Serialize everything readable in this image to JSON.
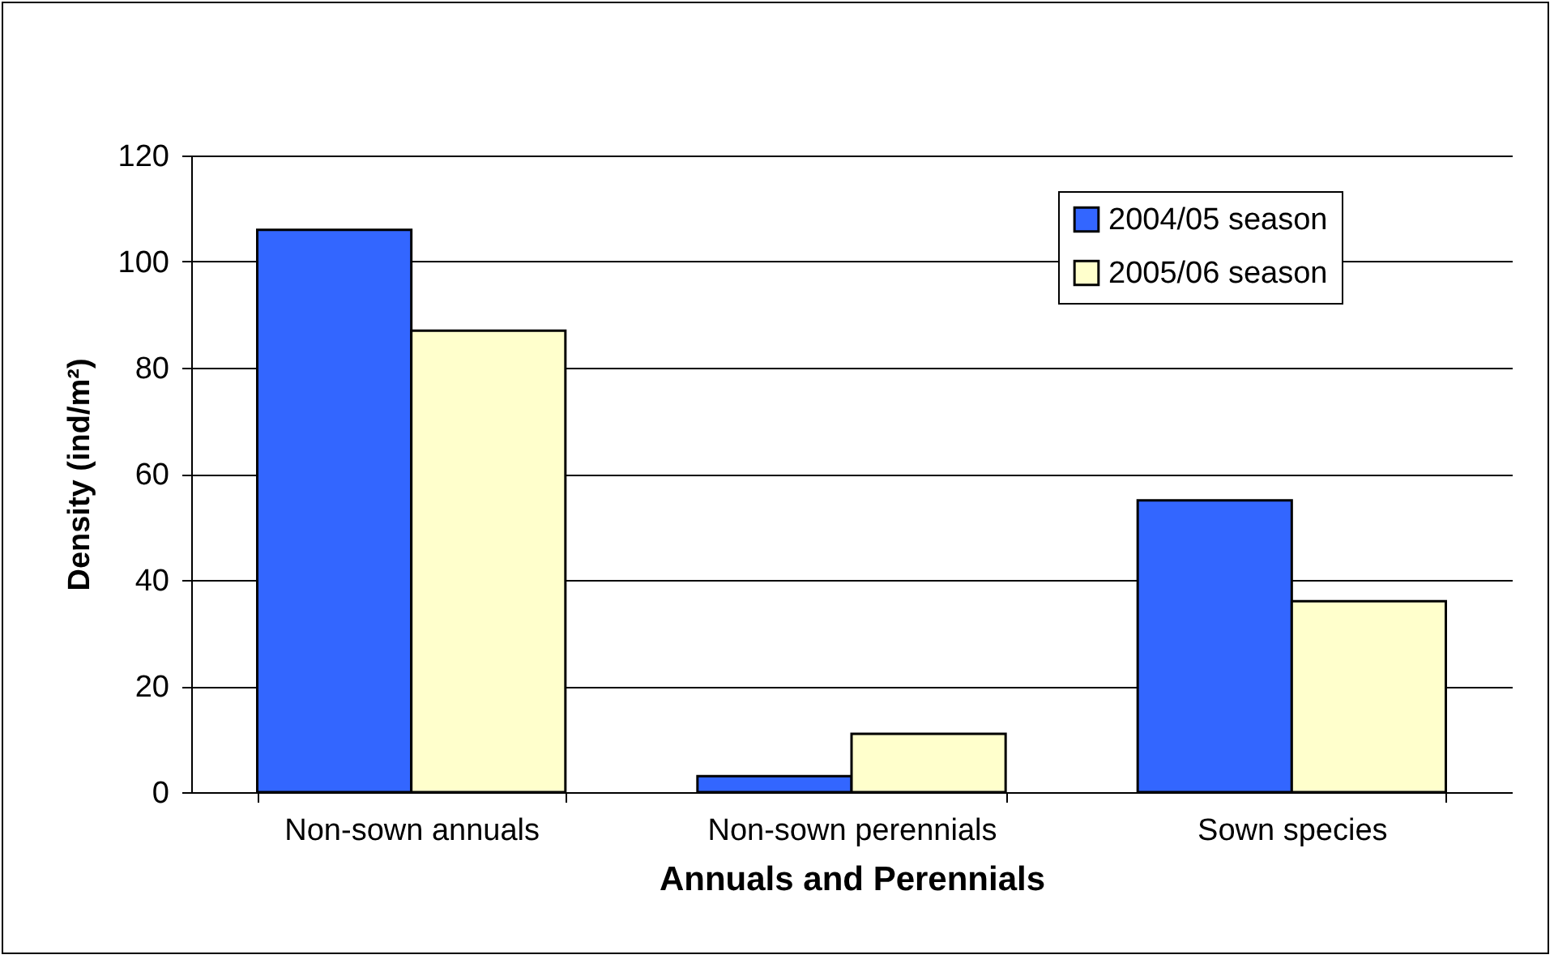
{
  "chart_data": {
    "type": "bar",
    "xlabel": "Annuals and Perennials",
    "ylabel": "Density (ind/m²)",
    "categories": [
      "Non-sown annuals",
      "Non-sown perennials",
      "Sown species"
    ],
    "series": [
      {
        "name": "2004/05 season",
        "color": "#3366ff",
        "values": [
          106,
          3,
          55
        ]
      },
      {
        "name": "2005/06 season",
        "color": "#ffffcc",
        "values": [
          87,
          11,
          36
        ]
      }
    ],
    "ylim": [
      0,
      120
    ],
    "yticks": [
      0,
      20,
      40,
      60,
      80,
      100,
      120
    ],
    "grid": "y",
    "legend": "top right"
  }
}
